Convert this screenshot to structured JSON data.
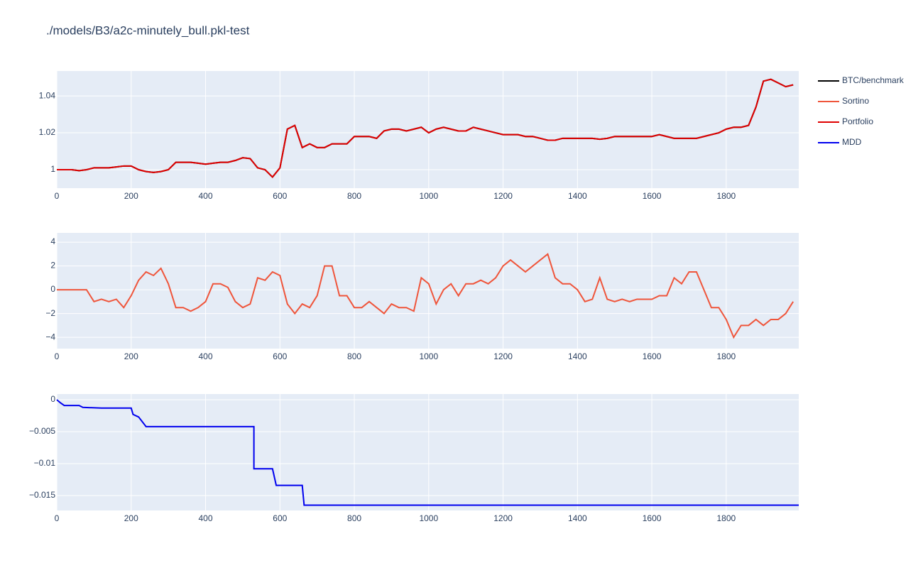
{
  "chart_data": [
    {
      "type": "line",
      "title": "./models/B3/a2c-minutely_bull.pkl-test",
      "x": [
        0,
        20,
        40,
        60,
        80,
        100,
        120,
        140,
        160,
        180,
        200,
        220,
        240,
        260,
        280,
        300,
        320,
        340,
        360,
        380,
        400,
        420,
        440,
        460,
        480,
        500,
        520,
        540,
        560,
        580,
        600,
        620,
        640,
        660,
        680,
        700,
        720,
        740,
        760,
        780,
        800,
        820,
        840,
        860,
        880,
        900,
        920,
        940,
        960,
        980,
        1000,
        1020,
        1040,
        1060,
        1080,
        1100,
        1120,
        1140,
        1160,
        1180,
        1200,
        1220,
        1240,
        1260,
        1280,
        1300,
        1320,
        1340,
        1360,
        1380,
        1400,
        1420,
        1440,
        1460,
        1480,
        1500,
        1520,
        1540,
        1560,
        1580,
        1600,
        1620,
        1640,
        1660,
        1680,
        1700,
        1720,
        1740,
        1760,
        1780,
        1800,
        1820,
        1840,
        1860,
        1880,
        1900,
        1920,
        1940,
        1960,
        1980
      ],
      "xlim": [
        0,
        1995
      ],
      "xticks": [
        0,
        200,
        400,
        600,
        800,
        1000,
        1200,
        1400,
        1600,
        1800
      ],
      "ylim": [
        0.99,
        1.0535
      ],
      "yticks": [
        1,
        1.02,
        1.04
      ],
      "grid": true,
      "series": [
        {
          "name": "BTC/benchmark",
          "color": "#000000",
          "values": [
            1.0,
            1.0,
            1.0,
            0.9995,
            1.0,
            1.001,
            1.001,
            1.001,
            1.0015,
            1.002,
            1.002,
            1.0,
            0.999,
            0.9985,
            0.999,
            1.0,
            1.004,
            1.004,
            1.004,
            1.0035,
            1.003,
            1.0035,
            1.004,
            1.004,
            1.005,
            1.0065,
            1.006,
            1.001,
            1.0,
            0.996,
            1.001,
            1.022,
            1.024,
            1.012,
            1.014,
            1.012,
            1.012,
            1.014,
            1.014,
            1.014,
            1.018,
            1.018,
            1.018,
            1.017,
            1.021,
            1.022,
            1.022,
            1.021,
            1.022,
            1.023,
            1.02,
            1.022,
            1.023,
            1.022,
            1.021,
            1.021,
            1.023,
            1.022,
            1.021,
            1.02,
            1.019,
            1.019,
            1.019,
            1.018,
            1.018,
            1.017,
            1.016,
            1.016,
            1.017,
            1.017,
            1.017,
            1.017,
            1.017,
            1.0165,
            1.017,
            1.018,
            1.018,
            1.018,
            1.018,
            1.018,
            1.018,
            1.019,
            1.018,
            1.017,
            1.017,
            1.017,
            1.017,
            1.018,
            1.019,
            1.02,
            1.022,
            1.023,
            1.023,
            1.024,
            1.034,
            1.048,
            1.049,
            1.047,
            1.045,
            1.046
          ]
        },
        {
          "name": "Portfolio",
          "color": "#e00000",
          "values": [
            1.0,
            1.0,
            1.0,
            0.9995,
            1.0,
            1.001,
            1.001,
            1.001,
            1.0015,
            1.002,
            1.002,
            1.0,
            0.999,
            0.9985,
            0.999,
            1.0,
            1.004,
            1.004,
            1.004,
            1.0035,
            1.003,
            1.0035,
            1.004,
            1.004,
            1.005,
            1.0065,
            1.006,
            1.001,
            1.0,
            0.996,
            1.001,
            1.022,
            1.024,
            1.012,
            1.014,
            1.012,
            1.012,
            1.014,
            1.014,
            1.014,
            1.018,
            1.018,
            1.018,
            1.017,
            1.021,
            1.022,
            1.022,
            1.021,
            1.022,
            1.023,
            1.02,
            1.022,
            1.023,
            1.022,
            1.021,
            1.021,
            1.023,
            1.022,
            1.021,
            1.02,
            1.019,
            1.019,
            1.019,
            1.018,
            1.018,
            1.017,
            1.016,
            1.016,
            1.017,
            1.017,
            1.017,
            1.017,
            1.017,
            1.0165,
            1.017,
            1.018,
            1.018,
            1.018,
            1.018,
            1.018,
            1.018,
            1.019,
            1.018,
            1.017,
            1.017,
            1.017,
            1.017,
            1.018,
            1.019,
            1.02,
            1.022,
            1.023,
            1.023,
            1.024,
            1.034,
            1.048,
            1.049,
            1.047,
            1.045,
            1.046
          ]
        }
      ]
    },
    {
      "type": "line",
      "x": [
        0,
        20,
        40,
        60,
        80,
        100,
        120,
        140,
        160,
        180,
        200,
        220,
        240,
        260,
        280,
        300,
        320,
        340,
        360,
        380,
        400,
        420,
        440,
        460,
        480,
        500,
        520,
        540,
        560,
        580,
        600,
        620,
        640,
        660,
        680,
        700,
        720,
        740,
        760,
        780,
        800,
        820,
        840,
        860,
        880,
        900,
        920,
        940,
        960,
        980,
        1000,
        1020,
        1040,
        1060,
        1080,
        1100,
        1120,
        1140,
        1160,
        1180,
        1200,
        1220,
        1240,
        1260,
        1280,
        1300,
        1320,
        1340,
        1360,
        1380,
        1400,
        1420,
        1440,
        1460,
        1480,
        1500,
        1520,
        1540,
        1560,
        1580,
        1600,
        1620,
        1640,
        1660,
        1680,
        1700,
        1720,
        1740,
        1760,
        1780,
        1800,
        1820,
        1840,
        1860,
        1880,
        1900,
        1920,
        1940,
        1960,
        1980
      ],
      "xlim": [
        0,
        1995
      ],
      "xticks": [
        0,
        200,
        400,
        600,
        800,
        1000,
        1200,
        1400,
        1600,
        1800
      ],
      "ylim": [
        -4.95,
        4.78
      ],
      "yticks": [
        {
          "value": -4,
          "label": "−4"
        },
        {
          "value": -2,
          "label": "−2"
        },
        0,
        2,
        4
      ],
      "grid": true,
      "series": [
        {
          "name": "Sortino",
          "color": "#ef553b",
          "values": [
            0,
            0,
            0,
            0,
            0,
            -1,
            -0.8,
            -1,
            -0.8,
            -1.5,
            -0.5,
            0.8,
            1.5,
            1.2,
            1.8,
            0.5,
            -1.5,
            -1.5,
            -1.8,
            -1.5,
            -1,
            0.5,
            0.5,
            0.2,
            -1,
            -1.5,
            -1.2,
            1,
            0.8,
            1.5,
            1.2,
            -1.2,
            -2,
            -1.2,
            -1.5,
            -0.5,
            2,
            2,
            -0.5,
            -0.5,
            -1.5,
            -1.5,
            -1,
            -1.5,
            -2,
            -1.2,
            -1.5,
            -1.5,
            -1.8,
            1,
            0.5,
            -1.2,
            0,
            0.5,
            -0.5,
            0.5,
            0.5,
            0.8,
            0.5,
            1,
            2,
            2.5,
            2,
            1.5,
            2,
            2.5,
            3,
            1,
            0.5,
            0.5,
            0,
            -1,
            -0.8,
            1,
            -0.8,
            -1,
            -0.8,
            -1,
            -0.8,
            -0.8,
            -0.8,
            -0.5,
            -0.5,
            1,
            0.5,
            1.5,
            1.5,
            0,
            -1.5,
            -1.5,
            -2.5,
            -4,
            -3,
            -3,
            -2.5,
            -3,
            -2.5,
            -2.5,
            -2,
            -1
          ]
        }
      ]
    },
    {
      "type": "line",
      "x": [
        0,
        10,
        20,
        60,
        70,
        120,
        200,
        205,
        220,
        240,
        530,
        530,
        580,
        590,
        660,
        665,
        1995
      ],
      "xlim": [
        0,
        1995
      ],
      "xticks": [
        0,
        200,
        400,
        600,
        800,
        1000,
        1200,
        1400,
        1600,
        1800
      ],
      "ylim": [
        -0.01733,
        0.00089
      ],
      "yticks": [
        {
          "value": -0.015,
          "label": "−0.015"
        },
        {
          "value": -0.01,
          "label": "−0.01"
        },
        {
          "value": -0.005,
          "label": "−0.005"
        },
        0
      ],
      "grid": true,
      "series": [
        {
          "name": "MDD",
          "color": "#0000ee",
          "values": [
            0,
            -0.0005,
            -0.0009,
            -0.0009,
            -0.0012,
            -0.0013,
            -0.0013,
            -0.0023,
            -0.0027,
            -0.0042,
            -0.0042,
            -0.0108,
            -0.0108,
            -0.0134,
            -0.0134,
            -0.0165,
            -0.0165
          ]
        }
      ]
    }
  ]
}
